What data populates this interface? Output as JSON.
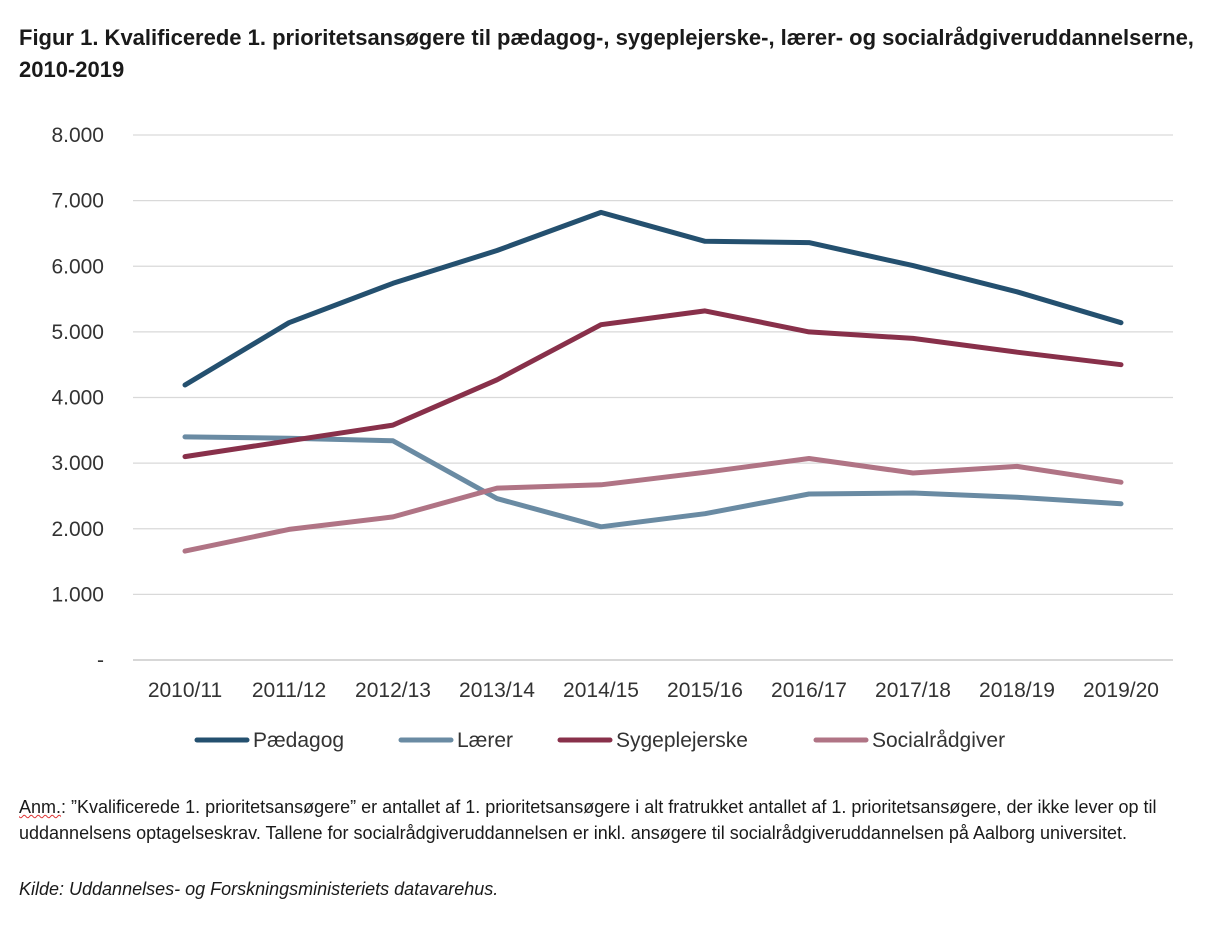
{
  "title": "Figur 1. Kvalificerede 1. prioritetsansøgere til pædagog-, sygeplejerske-, lærer- og socialrådgiveruddannelserne, 2010-2019",
  "note": {
    "prefix": "Anm.",
    "text": ": ”Kvalificerede 1. prioritetsansøgere” er antallet af 1. prioritetsansøgere i alt fratrukket antallet af 1. prioritetsansøgere, der ikke lever op til uddannelsens optagelseskrav. Tallene for socialrådgiveruddannelsen er inkl. ansøgere til socialrådgiveruddannelsen på Aalborg universitet."
  },
  "source": "Kilde: Uddannelses- og Forskningsministeriets datavarehus.",
  "chart_data": {
    "type": "line",
    "title": "",
    "xlabel": "",
    "ylabel": "",
    "ylim": [
      0,
      8000
    ],
    "y_ticks": [
      0,
      1000,
      2000,
      3000,
      4000,
      5000,
      6000,
      7000,
      8000
    ],
    "y_tick_labels": [
      "-",
      "1.000",
      "2.000",
      "3.000",
      "4.000",
      "5.000",
      "6.000",
      "7.000",
      "8.000"
    ],
    "grid": true,
    "legend_position": "bottom",
    "categories": [
      "2010/11",
      "2011/12",
      "2012/13",
      "2013/14",
      "2014/15",
      "2015/16",
      "2016/17",
      "2017/18",
      "2018/19",
      "2019/20"
    ],
    "series": [
      {
        "name": "Pædagog",
        "color": "#24506f",
        "values": [
          4190,
          5140,
          5740,
          6240,
          6820,
          6380,
          6360,
          6010,
          5610,
          5140
        ]
      },
      {
        "name": "Lærer",
        "color": "#6a8ba3",
        "values": [
          3400,
          3380,
          3340,
          2460,
          2030,
          2230,
          2530,
          2545,
          2480,
          2380
        ]
      },
      {
        "name": "Sygeplejerske",
        "color": "#88304a",
        "values": [
          3100,
          3340,
          3580,
          4270,
          5110,
          5320,
          5000,
          4900,
          4690,
          4500
        ]
      },
      {
        "name": "Socialrådgiver",
        "color": "#b07485",
        "values": [
          1660,
          1990,
          2180,
          2620,
          2670,
          2860,
          3070,
          2850,
          2950,
          2710
        ]
      }
    ]
  }
}
